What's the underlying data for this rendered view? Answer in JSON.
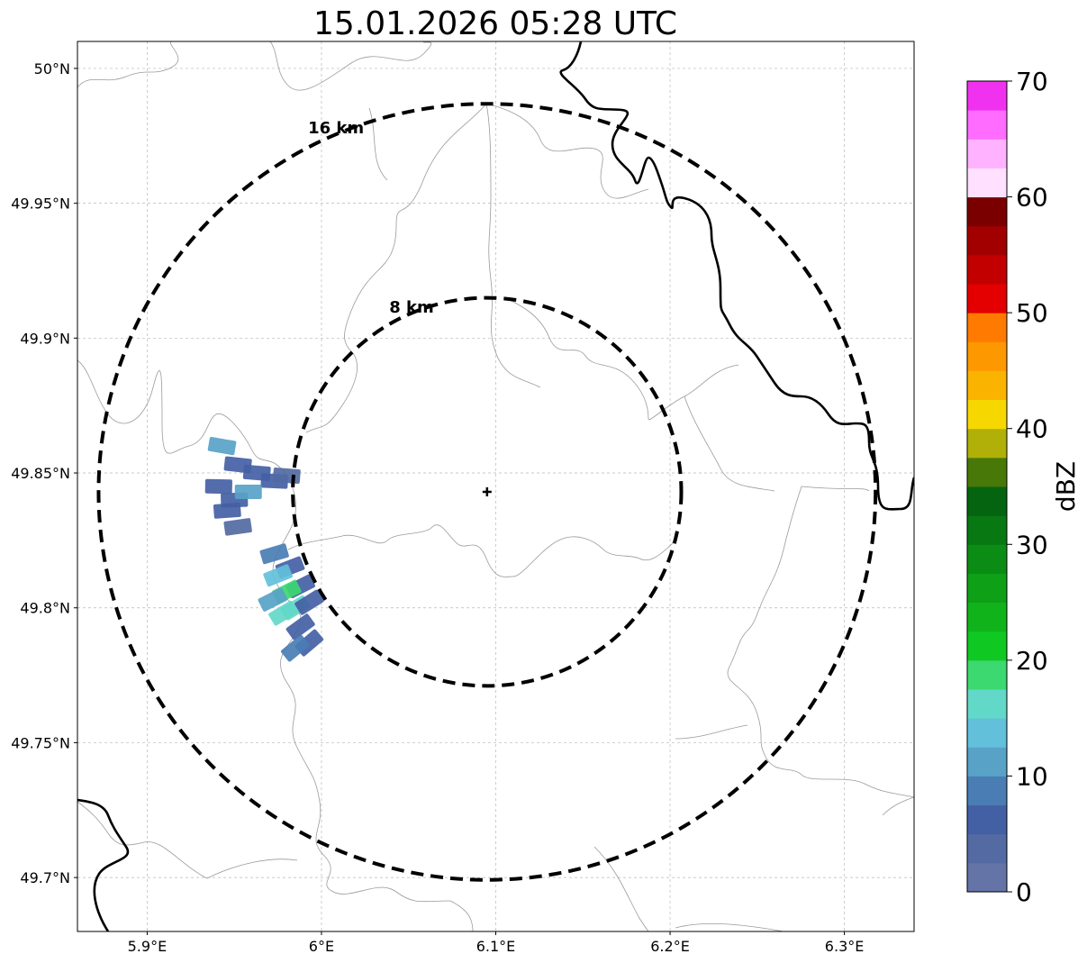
{
  "map": {
    "title": "15.01.2026 05:28 UTC",
    "extent": {
      "lon_min": 5.86,
      "lon_max": 6.34,
      "lat_min": 49.68,
      "lat_max": 50.01
    },
    "lon_ticks": [
      {
        "value": 5.9,
        "label": "5.9°E"
      },
      {
        "value": 6.0,
        "label": "6°E"
      },
      {
        "value": 6.1,
        "label": "6.1°E"
      },
      {
        "value": 6.2,
        "label": "6.2°E"
      },
      {
        "value": 6.3,
        "label": "6.3°E"
      }
    ],
    "lat_ticks": [
      {
        "value": 50.0,
        "label": "50°N"
      },
      {
        "value": 49.95,
        "label": "49.95°N"
      },
      {
        "value": 49.9,
        "label": "49.9°N"
      },
      {
        "value": 49.85,
        "label": "49.85°N"
      },
      {
        "value": 49.8,
        "label": "49.8°N"
      },
      {
        "value": 49.75,
        "label": "49.75°N"
      },
      {
        "value": 49.7,
        "label": "49.7°N"
      }
    ],
    "gridlines": true,
    "center": {
      "lon": 6.095,
      "lat": 49.843
    },
    "rings": [
      {
        "radius_km": 8,
        "label": "8 km"
      },
      {
        "radius_km": 16,
        "label": "16 km"
      }
    ]
  },
  "colorbar": {
    "label": "dBZ",
    "min": 0,
    "max": 70,
    "ticks": [
      {
        "value": 0,
        "label": "0"
      },
      {
        "value": 10,
        "label": "10"
      },
      {
        "value": 20,
        "label": "20"
      },
      {
        "value": 30,
        "label": "30"
      },
      {
        "value": 40,
        "label": "40"
      },
      {
        "value": 50,
        "label": "50"
      },
      {
        "value": 60,
        "label": "60"
      },
      {
        "value": 70,
        "label": "70"
      }
    ],
    "colors": [
      "#6474a6",
      "#536aa2",
      "#4460a4",
      "#4a7db4",
      "#58a2c8",
      "#62c0db",
      "#62d8c8",
      "#3cd870",
      "#10c822",
      "#10b41a",
      "#0ea016",
      "#0b8c14",
      "#087812",
      "#046410",
      "#487808",
      "#b0b008",
      "#f6d800",
      "#fab400",
      "#fe9800",
      "#fe7a00",
      "#e40000",
      "#c20000",
      "#a20000",
      "#7a0000",
      "#ffe0ff",
      "#ffb2ff",
      "#ff6cff",
      "#f032f0"
    ]
  },
  "chart_data": {
    "type": "heatmap",
    "title": "15.01.2026 05:28 UTC",
    "units": "dBZ",
    "cells": [
      {
        "lon": 5.943,
        "lat": 49.86,
        "dbz": 12
      },
      {
        "lon": 5.952,
        "lat": 49.853,
        "dbz": 6
      },
      {
        "lon": 5.963,
        "lat": 49.85,
        "dbz": 5
      },
      {
        "lon": 5.973,
        "lat": 49.847,
        "dbz": 6
      },
      {
        "lon": 5.98,
        "lat": 49.849,
        "dbz": 4
      },
      {
        "lon": 5.941,
        "lat": 49.845,
        "dbz": 5
      },
      {
        "lon": 5.95,
        "lat": 49.84,
        "dbz": 7
      },
      {
        "lon": 5.958,
        "lat": 49.843,
        "dbz": 10
      },
      {
        "lon": 5.946,
        "lat": 49.836,
        "dbz": 6
      },
      {
        "lon": 5.952,
        "lat": 49.83,
        "dbz": 4
      },
      {
        "lon": 5.973,
        "lat": 49.82,
        "dbz": 8
      },
      {
        "lon": 5.982,
        "lat": 49.815,
        "dbz": 7
      },
      {
        "lon": 5.975,
        "lat": 49.812,
        "dbz": 14
      },
      {
        "lon": 5.988,
        "lat": 49.808,
        "dbz": 6
      },
      {
        "lon": 5.98,
        "lat": 49.806,
        "dbz": 18
      },
      {
        "lon": 5.972,
        "lat": 49.803,
        "dbz": 12
      },
      {
        "lon": 5.985,
        "lat": 49.8,
        "dbz": 15
      },
      {
        "lon": 5.993,
        "lat": 49.802,
        "dbz": 5
      },
      {
        "lon": 5.978,
        "lat": 49.798,
        "dbz": 16
      },
      {
        "lon": 5.988,
        "lat": 49.793,
        "dbz": 7
      },
      {
        "lon": 5.993,
        "lat": 49.787,
        "dbz": 6
      },
      {
        "lon": 5.985,
        "lat": 49.785,
        "dbz": 9
      }
    ]
  }
}
